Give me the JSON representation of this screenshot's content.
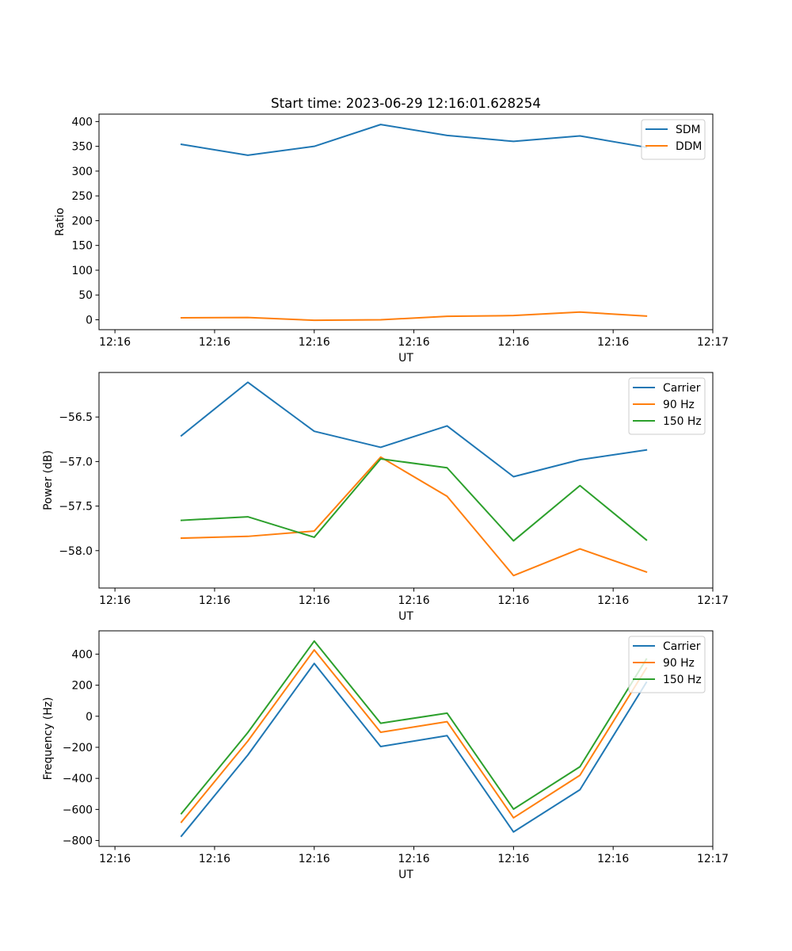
{
  "figure": {
    "title": "Start time: 2023-06-29 12:16:01.628254"
  },
  "colors": {
    "blue": "#1f77b4",
    "orange": "#ff7f0e",
    "green": "#2ca02c"
  },
  "chart_data": [
    {
      "type": "line",
      "title": "Start time: 2023-06-29 12:16:01.628254",
      "xlabel": "UT",
      "ylabel": "Ratio",
      "x": [
        0.5,
        1.0,
        1.5,
        2.0,
        2.5,
        3.0,
        3.5,
        4.0
      ],
      "xlim": [
        -0.12,
        4.5
      ],
      "x_ticks": [
        0,
        0.75,
        1.5,
        2.25,
        3.0,
        3.75,
        4.5
      ],
      "x_tick_labels": [
        "12:16",
        "12:16",
        "12:16",
        "12:16",
        "12:16",
        "12:16",
        "12:17"
      ],
      "ylim": [
        -20,
        415
      ],
      "y_ticks": [
        0,
        50,
        100,
        150,
        200,
        250,
        300,
        350,
        400
      ],
      "y_tick_labels": [
        "0",
        "50",
        "100",
        "150",
        "200",
        "250",
        "300",
        "350",
        "400"
      ],
      "legend": "top-right",
      "grid": false,
      "series": [
        {
          "name": "SDM",
          "color": "#1f77b4",
          "values": [
            354,
            332,
            350,
            394,
            372,
            360,
            371,
            348
          ]
        },
        {
          "name": "DDM",
          "color": "#ff7f0e",
          "values": [
            4,
            4.5,
            -1,
            0,
            7,
            8.5,
            15.5,
            7.5
          ]
        }
      ]
    },
    {
      "type": "line",
      "xlabel": "UT",
      "ylabel": "Power (dB)",
      "x": [
        0.5,
        1.0,
        1.5,
        2.0,
        2.5,
        3.0,
        3.5,
        4.0
      ],
      "xlim": [
        -0.12,
        4.5
      ],
      "x_ticks": [
        0,
        0.75,
        1.5,
        2.25,
        3.0,
        3.75,
        4.5
      ],
      "x_tick_labels": [
        "12:16",
        "12:16",
        "12:16",
        "12:16",
        "12:16",
        "12:16",
        "12:17"
      ],
      "ylim": [
        -58.42,
        -56.0
      ],
      "y_ticks": [
        -58.0,
        -57.5,
        -57.0,
        -56.5
      ],
      "y_tick_labels": [
        "−58.0",
        "−57.5",
        "−57.0",
        "−56.5"
      ],
      "legend": "top-right",
      "grid": false,
      "series": [
        {
          "name": "Carrier",
          "color": "#1f77b4",
          "values": [
            -56.71,
            -56.11,
            -56.66,
            -56.84,
            -56.6,
            -57.17,
            -56.98,
            -56.87
          ]
        },
        {
          "name": "90 Hz",
          "color": "#ff7f0e",
          "values": [
            -57.86,
            -57.84,
            -57.78,
            -56.95,
            -57.39,
            -58.28,
            -57.98,
            -58.24
          ]
        },
        {
          "name": "150 Hz",
          "color": "#2ca02c",
          "values": [
            -57.66,
            -57.62,
            -57.85,
            -56.97,
            -57.07,
            -57.89,
            -57.27,
            -57.88
          ]
        }
      ]
    },
    {
      "type": "line",
      "xlabel": "UT",
      "ylabel": "Frequency (Hz)",
      "x": [
        0.5,
        1.0,
        1.5,
        2.0,
        2.5,
        3.0,
        3.5,
        4.0
      ],
      "xlim": [
        -0.12,
        4.5
      ],
      "x_ticks": [
        0,
        0.75,
        1.5,
        2.25,
        3.0,
        3.75,
        4.5
      ],
      "x_tick_labels": [
        "12:16",
        "12:16",
        "12:16",
        "12:16",
        "12:16",
        "12:16",
        "12:17"
      ],
      "ylim": [
        -838,
        550
      ],
      "y_ticks": [
        -800,
        -600,
        -400,
        -200,
        0,
        200,
        400
      ],
      "y_tick_labels": [
        "−800",
        "−600",
        "−400",
        "−200",
        "0",
        "200",
        "400"
      ],
      "legend": "top-right",
      "grid": false,
      "series": [
        {
          "name": "Carrier",
          "color": "#1f77b4",
          "values": [
            -772,
            -250,
            340,
            -195,
            -125,
            -745,
            -473,
            218
          ]
        },
        {
          "name": "90 Hz",
          "color": "#ff7f0e",
          "values": [
            -682,
            -160,
            427,
            -103,
            -35,
            -654,
            -380,
            310
          ]
        },
        {
          "name": "150 Hz",
          "color": "#2ca02c",
          "values": [
            -627,
            -105,
            484,
            -45,
            20,
            -598,
            -325,
            368
          ]
        }
      ]
    }
  ]
}
